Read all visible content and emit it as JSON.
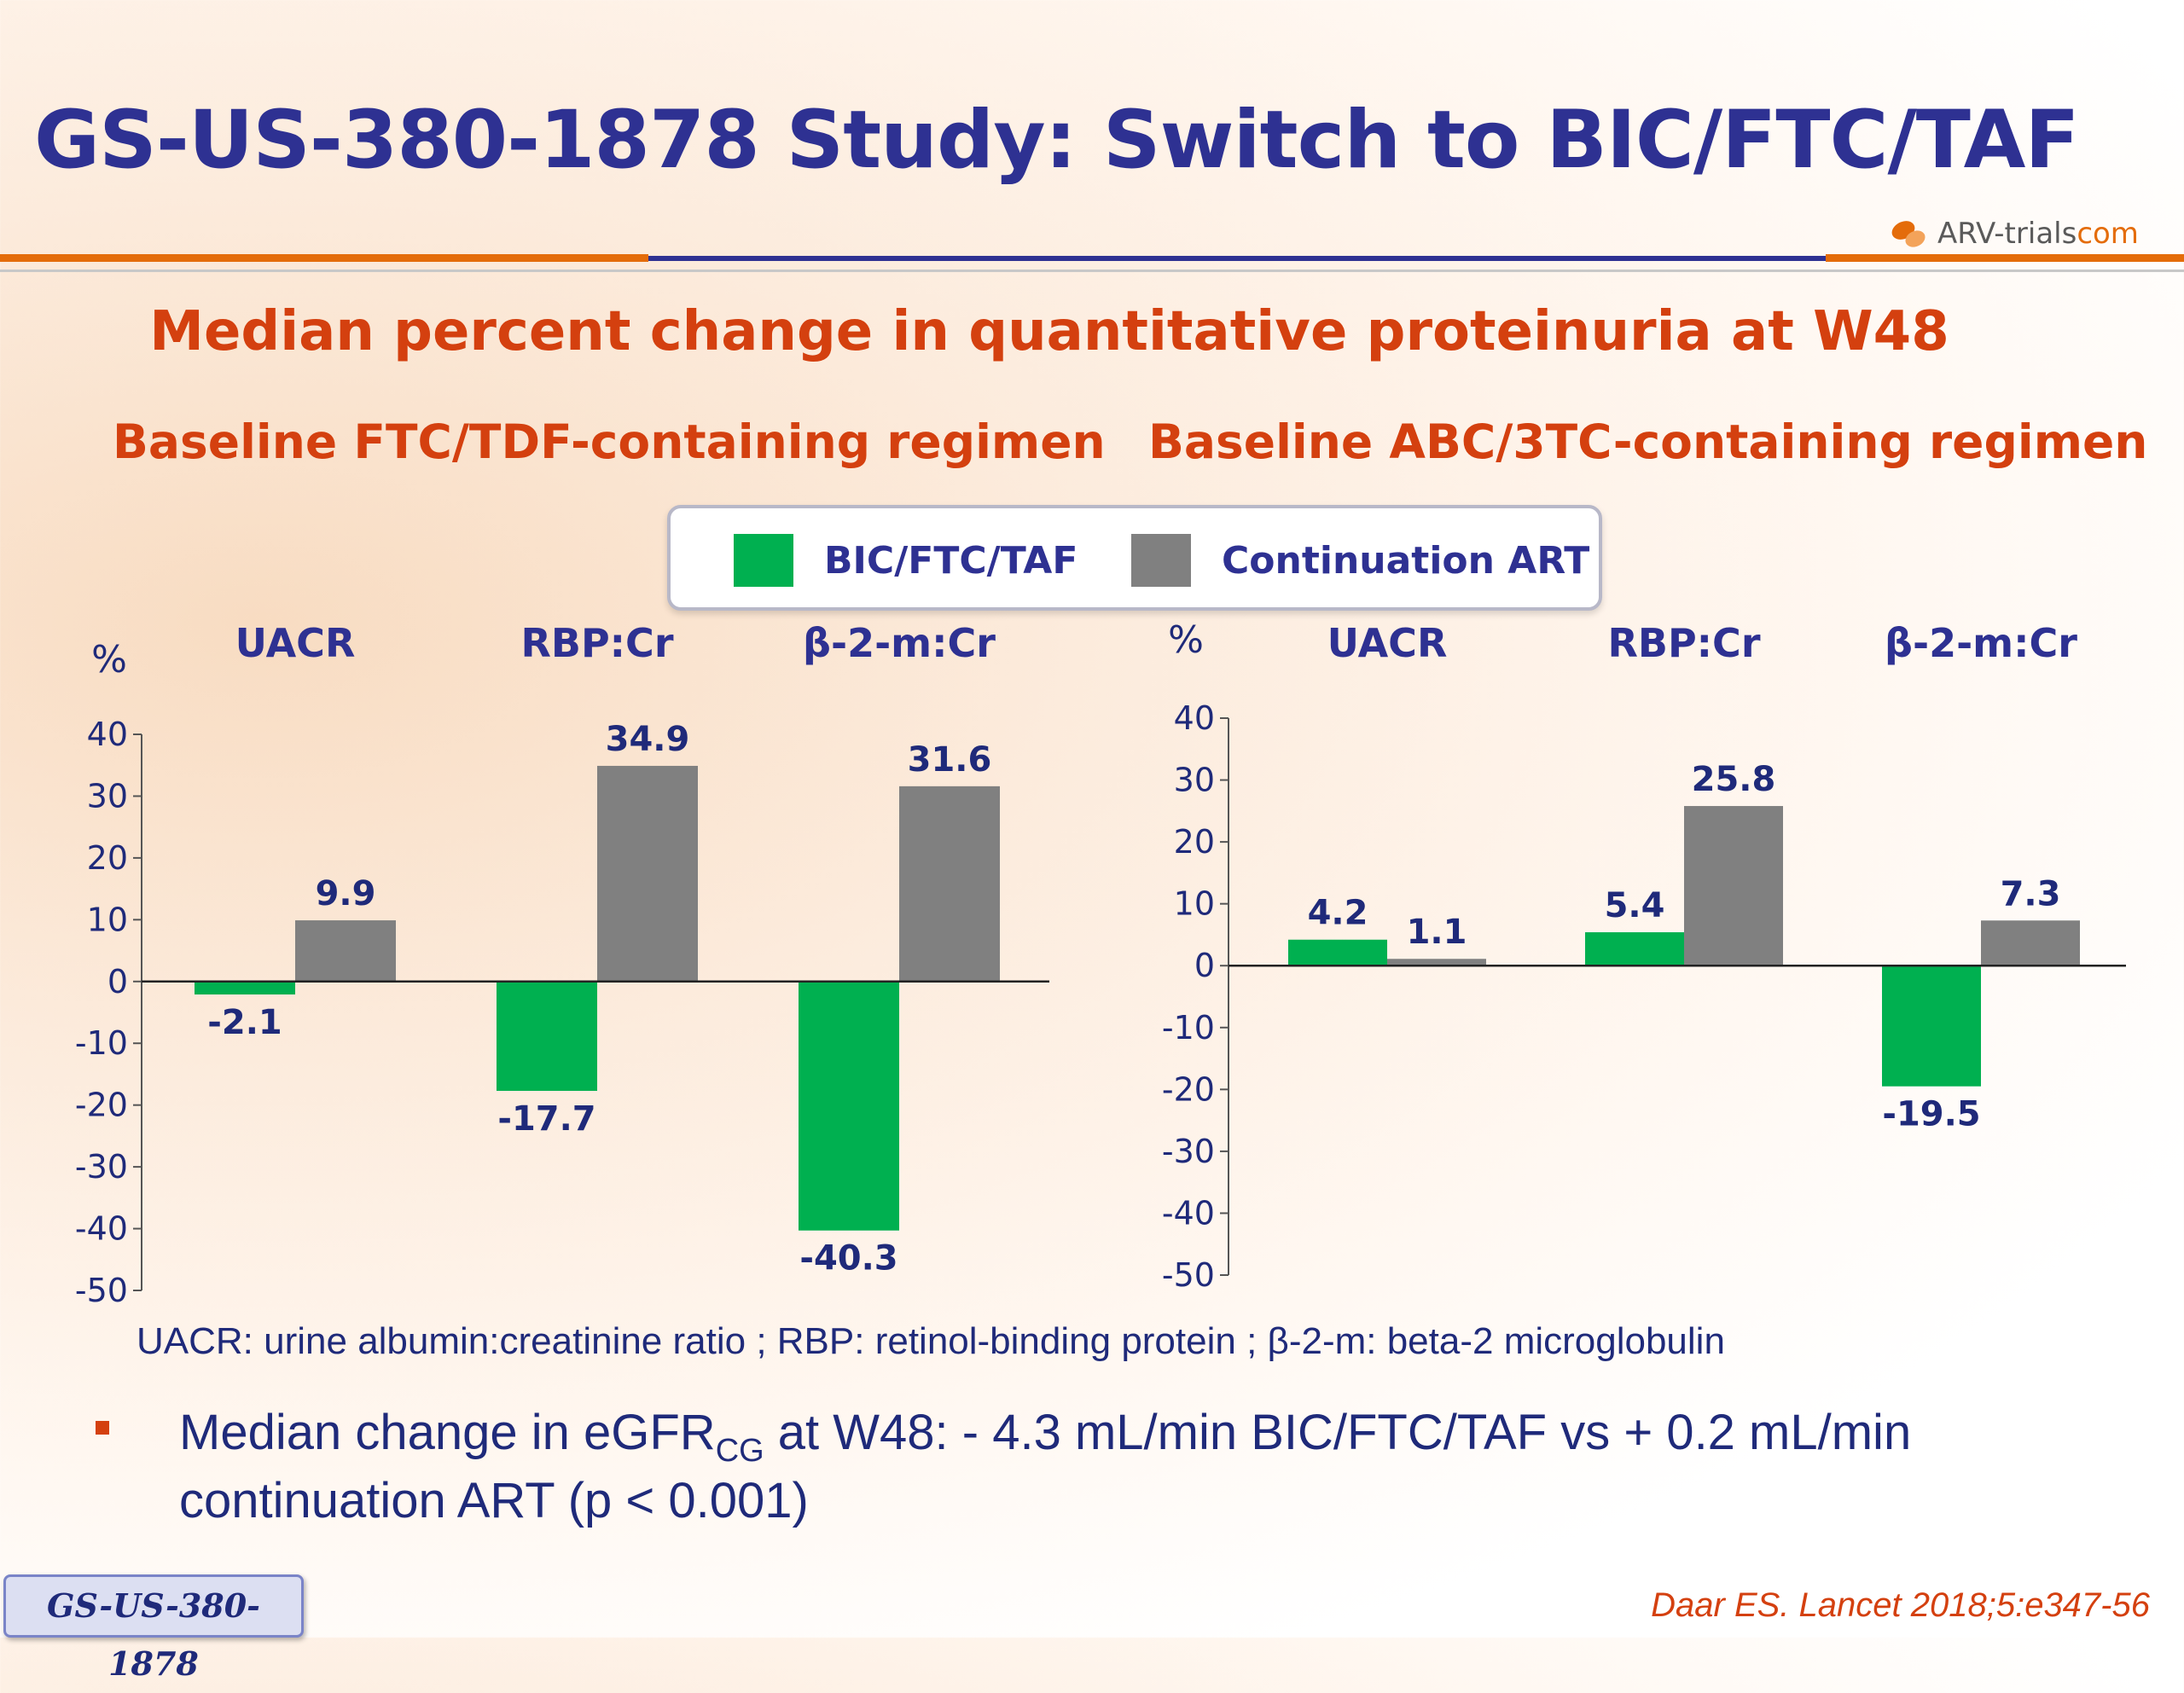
{
  "header": {
    "title": "GS-US-380-1878 Study: Switch to BIC/FTC/TAF",
    "logo_text": "ARV-trials",
    "logo_suffix": "com"
  },
  "subtitle": "Median percent change in quantitative proteinuria at W48",
  "legend": {
    "items": [
      {
        "label": "BIC/FTC/TAF",
        "color": "#00b050"
      },
      {
        "label": "Continuation ART",
        "color": "#808080"
      }
    ]
  },
  "colors": {
    "bic": "#00b050",
    "cont": "#808080",
    "title": "#2e3192",
    "accent": "#d4400f"
  },
  "chart_data": [
    {
      "type": "bar",
      "title": "Baseline FTC/TDF-containing regimen",
      "ylabel": "%",
      "categories": [
        "UACR",
        "RBP:Cr",
        "β-2-m:Cr"
      ],
      "ylim": [
        -50,
        40
      ],
      "yticks": [
        "40",
        "30",
        "20",
        "10",
        "0",
        "-10",
        "-20",
        "-30",
        "-40",
        "-50"
      ],
      "series": [
        {
          "name": "BIC/FTC/TAF",
          "values": [
            -2.1,
            -17.7,
            -40.3
          ],
          "labels": [
            "-2.1",
            "-17.7",
            "-40.3"
          ]
        },
        {
          "name": "Continuation ART",
          "values": [
            9.9,
            34.9,
            31.6
          ],
          "labels": [
            "9.9",
            "34.9",
            "31.6"
          ]
        }
      ]
    },
    {
      "type": "bar",
      "title": "Baseline ABC/3TC-containing regimen",
      "ylabel": "%",
      "categories": [
        "UACR",
        "RBP:Cr",
        "β-2-m:Cr"
      ],
      "ylim": [
        -50,
        40
      ],
      "yticks": [
        "40",
        "30",
        "20",
        "10",
        "0",
        "-10",
        "-20",
        "-30",
        "-40",
        "-50"
      ],
      "series": [
        {
          "name": "BIC/FTC/TAF",
          "values": [
            4.2,
            5.4,
            -19.5
          ],
          "labels": [
            "4.2",
            "5.4",
            "-19.5"
          ]
        },
        {
          "name": "Continuation ART",
          "values": [
            1.1,
            25.8,
            7.3
          ],
          "labels": [
            "1.1",
            "25.8",
            "7.3"
          ]
        }
      ]
    }
  ],
  "footnote": "UACR: urine albumin:creatinine ratio ; RBP: retinol-binding protein ;  β-2-m: beta-2 microglobulin",
  "bullet": {
    "prefix": "Median change in eGFR",
    "subscript": "CG",
    "suffix": " at W48: - 4.3 mL/min BIC/FTC/TAF vs + 0.2 mL/min continuation ART (p < 0.001)"
  },
  "badge": "GS-US-380-1878",
  "reference": "Daar ES. Lancet 2018;5:e347-56"
}
